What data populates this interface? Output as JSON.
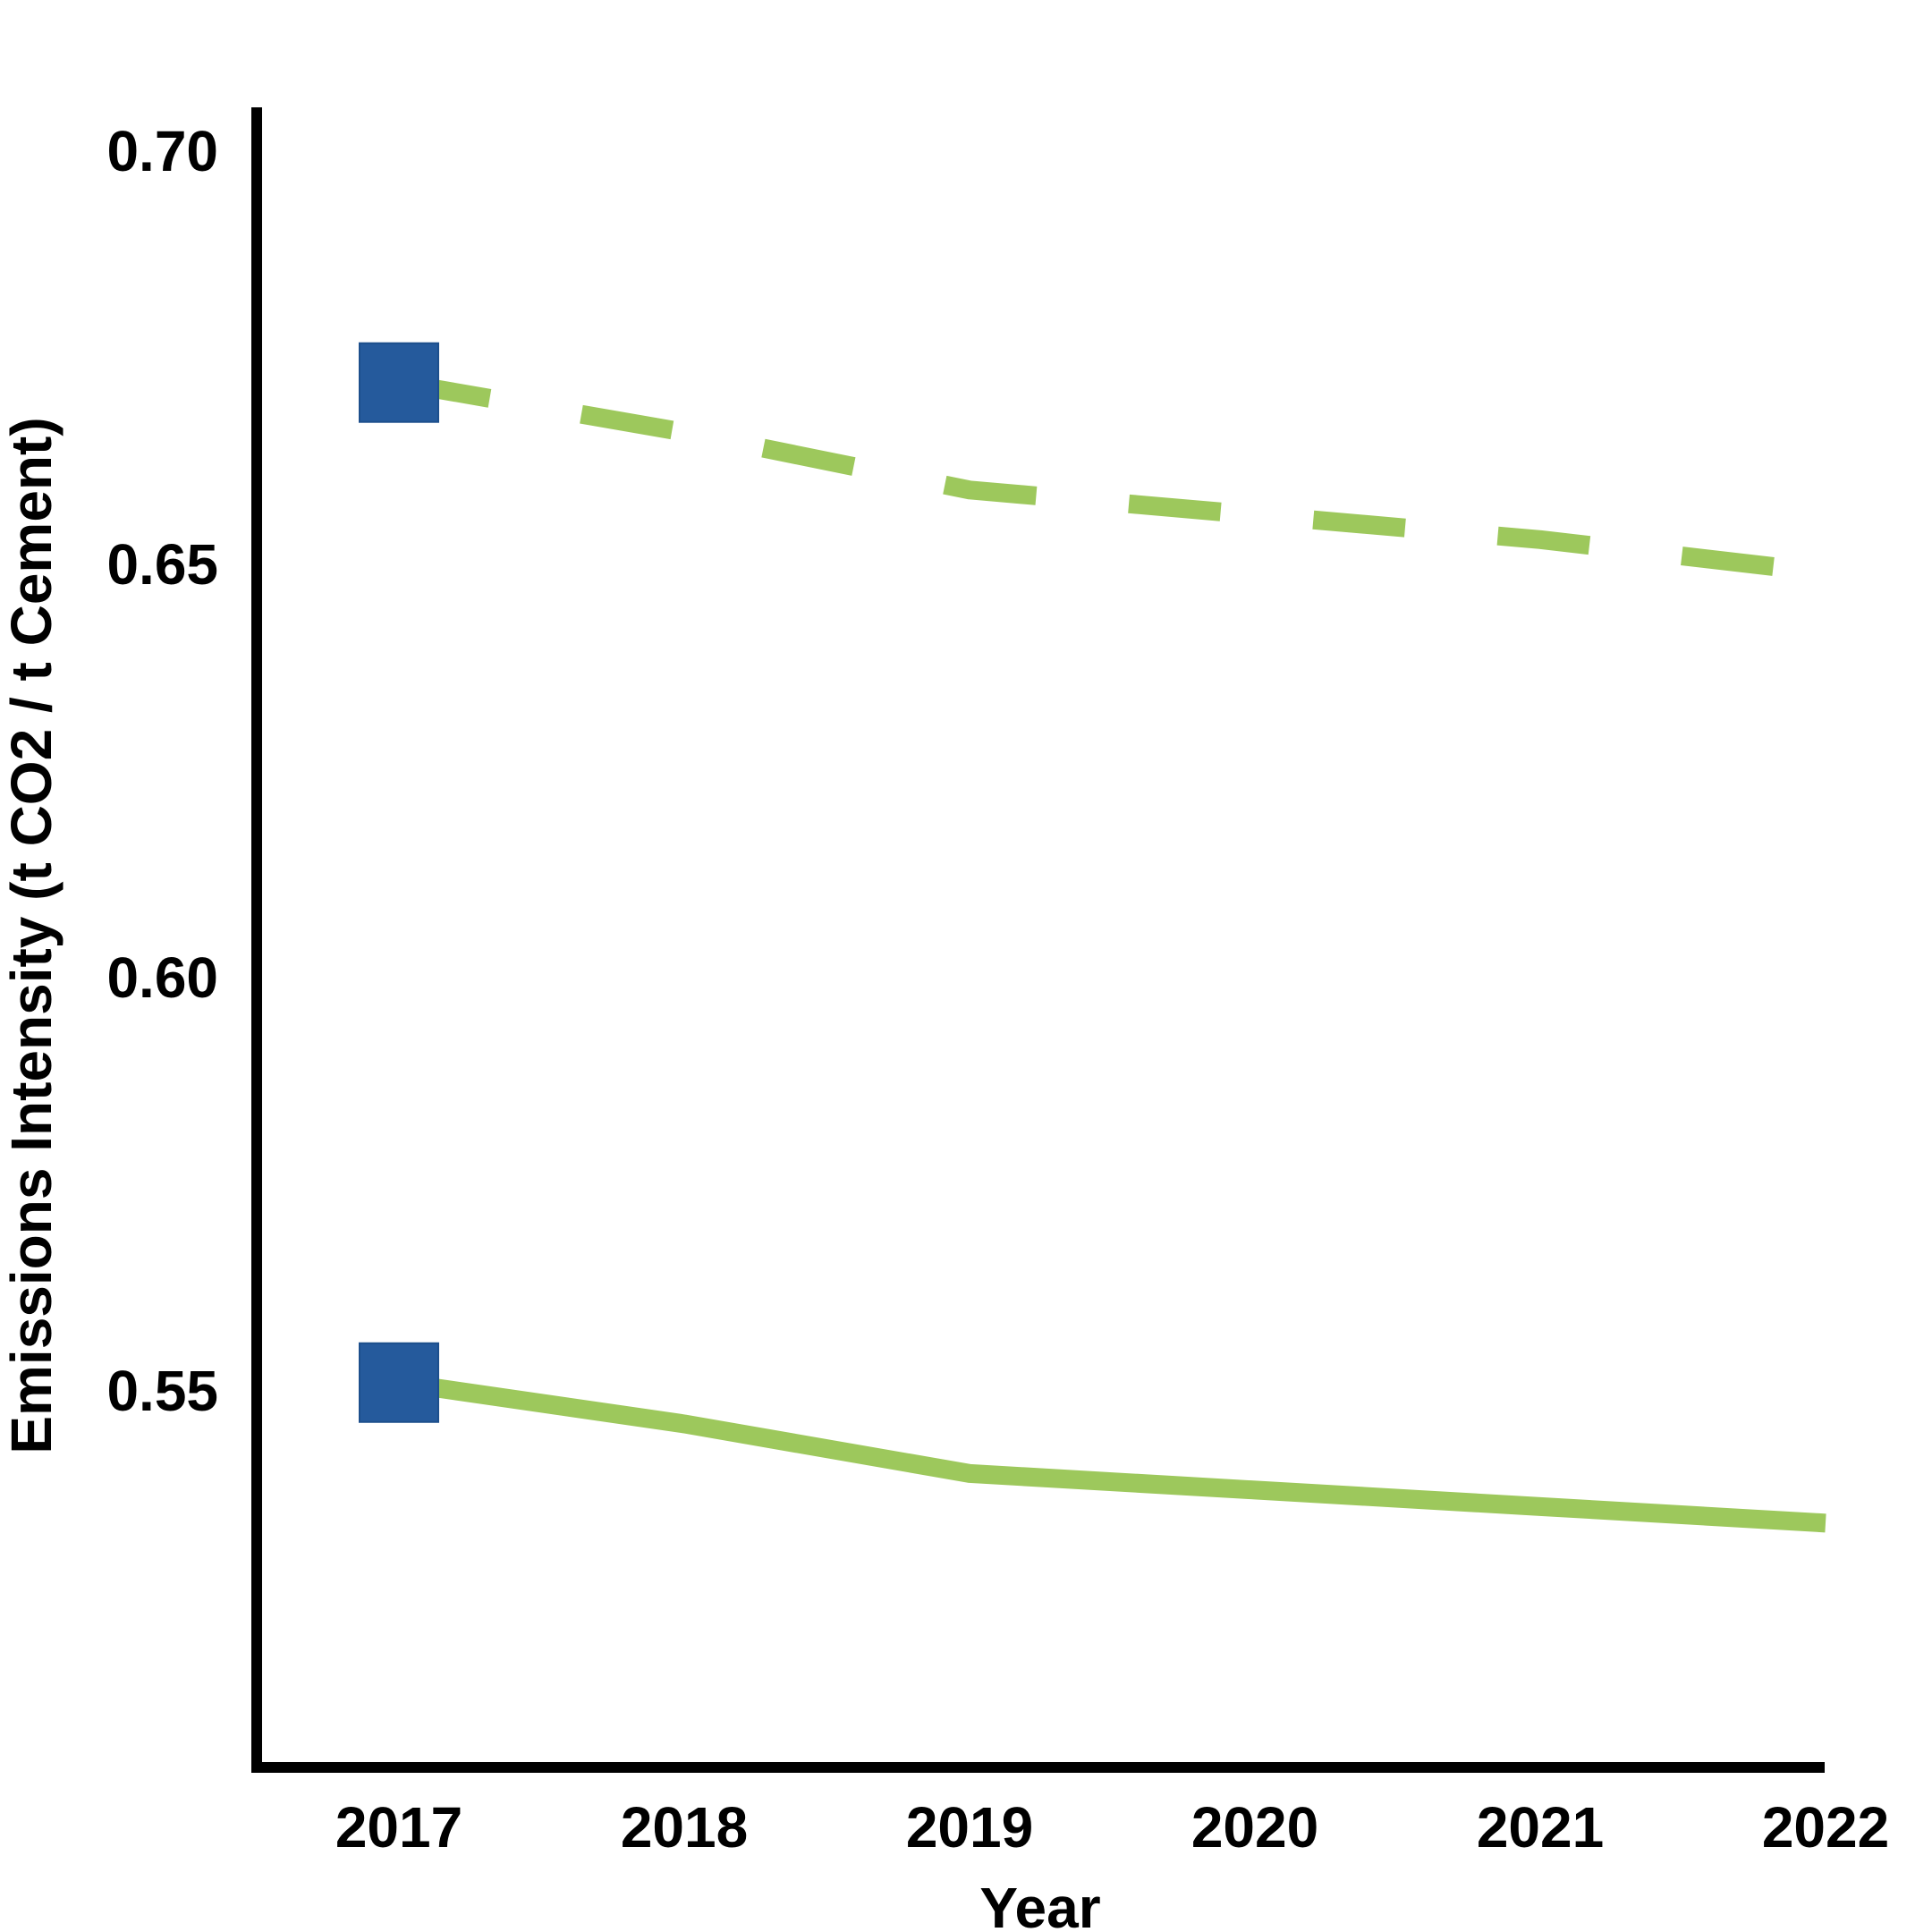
{
  "chart_data": {
    "type": "line",
    "title": "",
    "xlabel": "Year",
    "ylabel": "Emissions Intensity (t CO2 / t Cement)",
    "categories": [
      "2017",
      "2018",
      "2019",
      "2020",
      "2021",
      "2022"
    ],
    "y_ticks": [
      "0.55",
      "0.60",
      "0.65",
      "0.70"
    ],
    "ylim": [
      0.505,
      0.705
    ],
    "grid": false,
    "legend": "none",
    "series": [
      {
        "style": "dashed",
        "color": "#9DC85C",
        "values": [
          0.672,
          0.666,
          0.659,
          0.656,
          0.653,
          0.649
        ]
      },
      {
        "style": "solid",
        "color": "#9DC85C",
        "values": [
          0.551,
          0.546,
          0.54,
          0.538,
          0.536,
          0.534
        ]
      }
    ],
    "markers": [
      {
        "category": "2017",
        "value": 0.672,
        "shape": "square",
        "color": "#255A9C"
      },
      {
        "category": "2017",
        "value": 0.551,
        "shape": "square",
        "color": "#255A9C"
      }
    ]
  }
}
